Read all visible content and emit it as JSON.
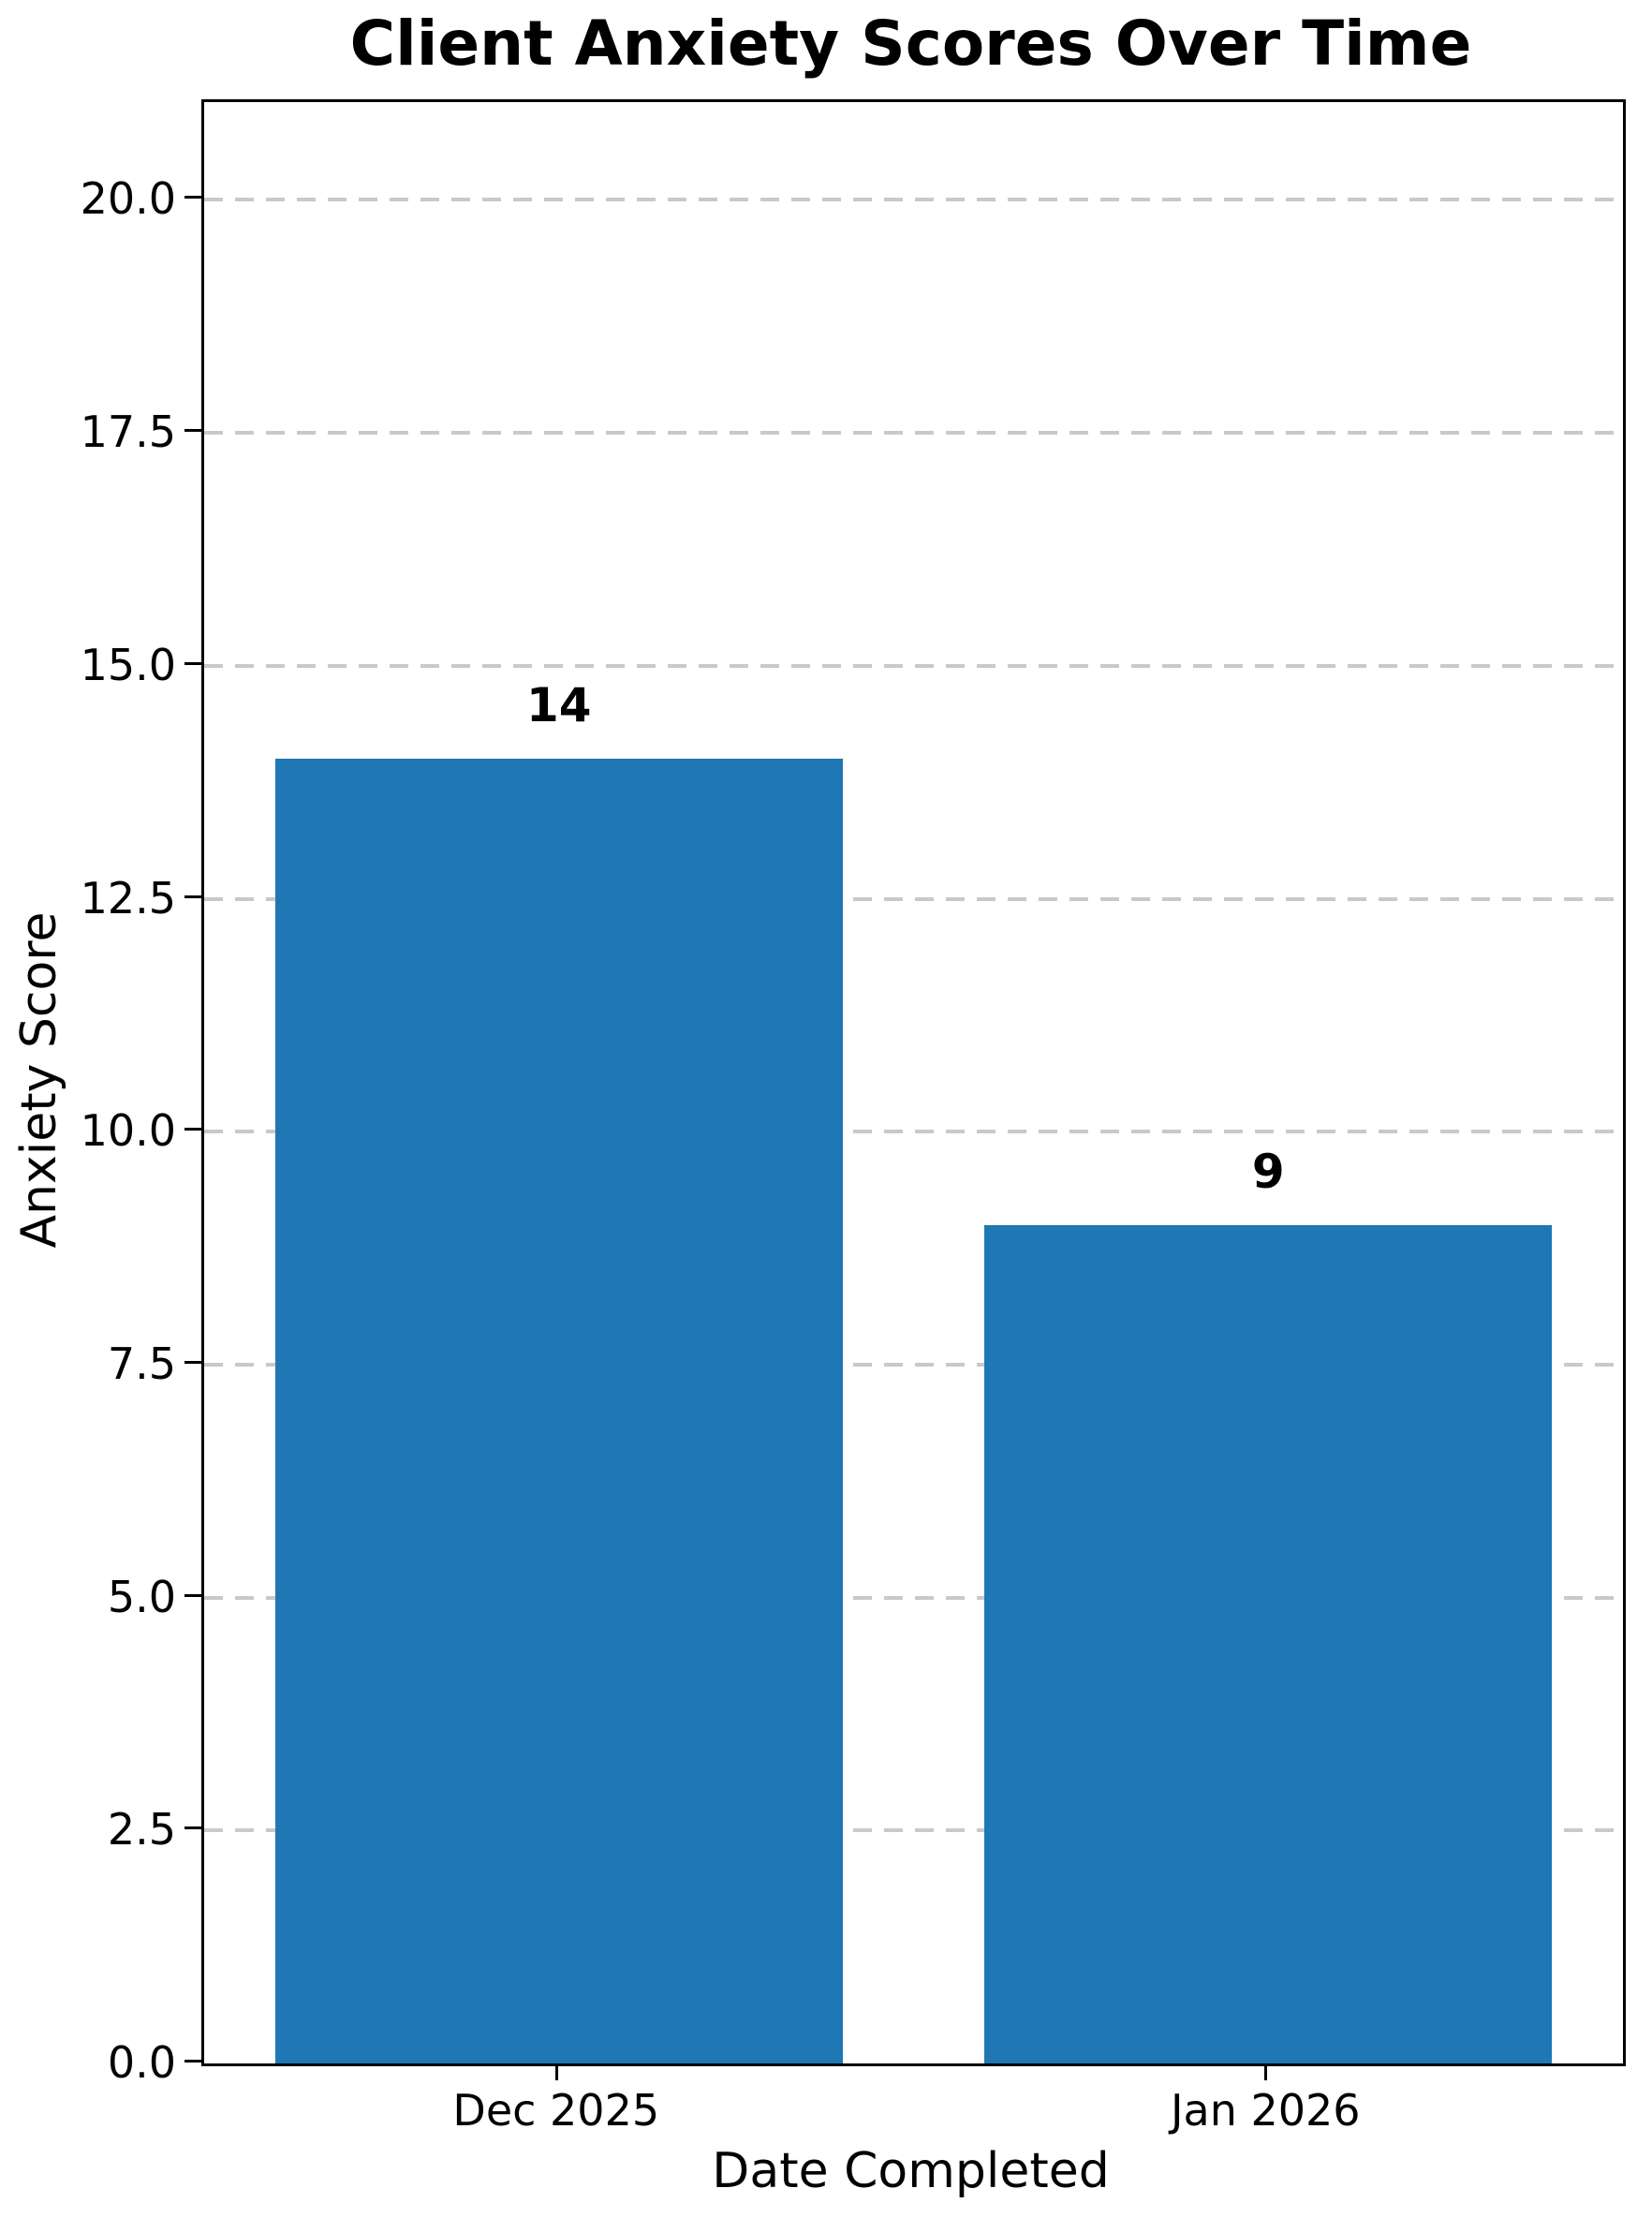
{
  "chart_data": {
    "type": "bar",
    "title": "Client Anxiety Scores Over Time",
    "xlabel": "Date Completed",
    "ylabel": "Anxiety Score",
    "categories": [
      "Dec 2025",
      "Jan 2026"
    ],
    "values": [
      14,
      9
    ],
    "bar_labels": [
      "14",
      "9"
    ],
    "yticks": [
      0.0,
      2.5,
      5.0,
      7.5,
      10.0,
      12.5,
      15.0,
      17.5,
      20.0
    ],
    "ytick_labels": [
      "0.0",
      "2.5",
      "5.0",
      "7.5",
      "10.0",
      "12.5",
      "15.0",
      "17.5",
      "20.0"
    ],
    "ylim": [
      0,
      21.05
    ],
    "bar_color": "#1f77b4",
    "grid": true,
    "grid_color": "#c9c9c9",
    "grid_style": "dashed",
    "legend_position": "none",
    "bar_width_frac": 0.8,
    "text_color": "#000000"
  }
}
